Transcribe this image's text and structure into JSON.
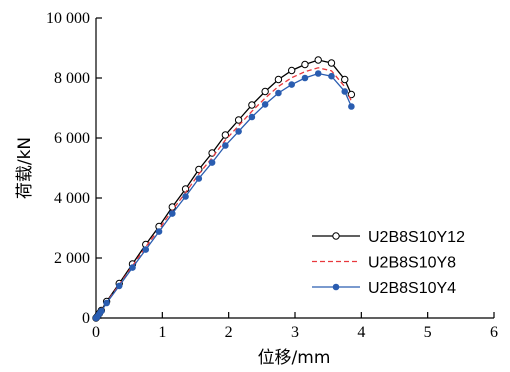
{
  "chart_data": {
    "type": "line",
    "title": "",
    "xlabel": "位移/mm",
    "ylabel": "荷载/kN",
    "xlim": [
      0,
      6
    ],
    "ylim": [
      0,
      10000
    ],
    "x_ticks": [
      0,
      1,
      2,
      3,
      4,
      5,
      6
    ],
    "x_tick_labels": [
      "0",
      "1",
      "2",
      "3",
      "4",
      "5",
      "6"
    ],
    "y_ticks": [
      0,
      2000,
      4000,
      6000,
      8000,
      10000
    ],
    "y_tick_labels": [
      "0",
      "2 000",
      "4 000",
      "6 000",
      "8 000",
      "10 000"
    ],
    "grid": false,
    "legend_position": "right",
    "series": [
      {
        "name": "U2B8S10Y12",
        "color": "#000000",
        "line_style": "solid",
        "marker": "open-circle",
        "x": [
          0,
          0.02,
          0.05,
          0.08,
          0.16,
          0.35,
          0.55,
          0.75,
          0.95,
          1.15,
          1.35,
          1.55,
          1.75,
          1.95,
          2.15,
          2.35,
          2.55,
          2.75,
          2.95,
          3.15,
          3.35,
          3.55,
          3.75,
          3.85
        ],
        "y": [
          0,
          50,
          150,
          250,
          550,
          1150,
          1800,
          2450,
          3050,
          3700,
          4300,
          4950,
          5500,
          6100,
          6600,
          7100,
          7550,
          7950,
          8250,
          8450,
          8600,
          8500,
          7950,
          7450
        ]
      },
      {
        "name": "U2B8S10Y8",
        "color": "#e8383d",
        "line_style": "dashed",
        "marker": "none",
        "x": [
          0,
          0.02,
          0.05,
          0.08,
          0.16,
          0.35,
          0.55,
          0.75,
          0.95,
          1.15,
          1.35,
          1.55,
          1.75,
          1.95,
          2.15,
          2.35,
          2.55,
          2.75,
          2.95,
          3.15,
          3.35,
          3.55,
          3.75,
          3.85
        ],
        "y": [
          0,
          48,
          145,
          240,
          525,
          1110,
          1740,
          2370,
          2960,
          3590,
          4180,
          4800,
          5340,
          5930,
          6410,
          6890,
          7330,
          7720,
          8010,
          8210,
          8340,
          8240,
          7710,
          7230
        ]
      },
      {
        "name": "U2B8S10Y4",
        "color": "#2a5db0",
        "line_style": "solid",
        "marker": "filled-circle",
        "x": [
          0,
          0.02,
          0.05,
          0.08,
          0.16,
          0.35,
          0.55,
          0.75,
          0.95,
          1.15,
          1.35,
          1.55,
          1.75,
          1.95,
          2.15,
          2.35,
          2.55,
          2.75,
          2.95,
          3.15,
          3.35,
          3.55,
          3.75,
          3.85
        ],
        "y": [
          0,
          45,
          140,
          230,
          500,
          1070,
          1680,
          2280,
          2880,
          3480,
          4050,
          4650,
          5180,
          5750,
          6220,
          6700,
          7120,
          7500,
          7780,
          8000,
          8150,
          8060,
          7550,
          7050
        ]
      }
    ]
  }
}
